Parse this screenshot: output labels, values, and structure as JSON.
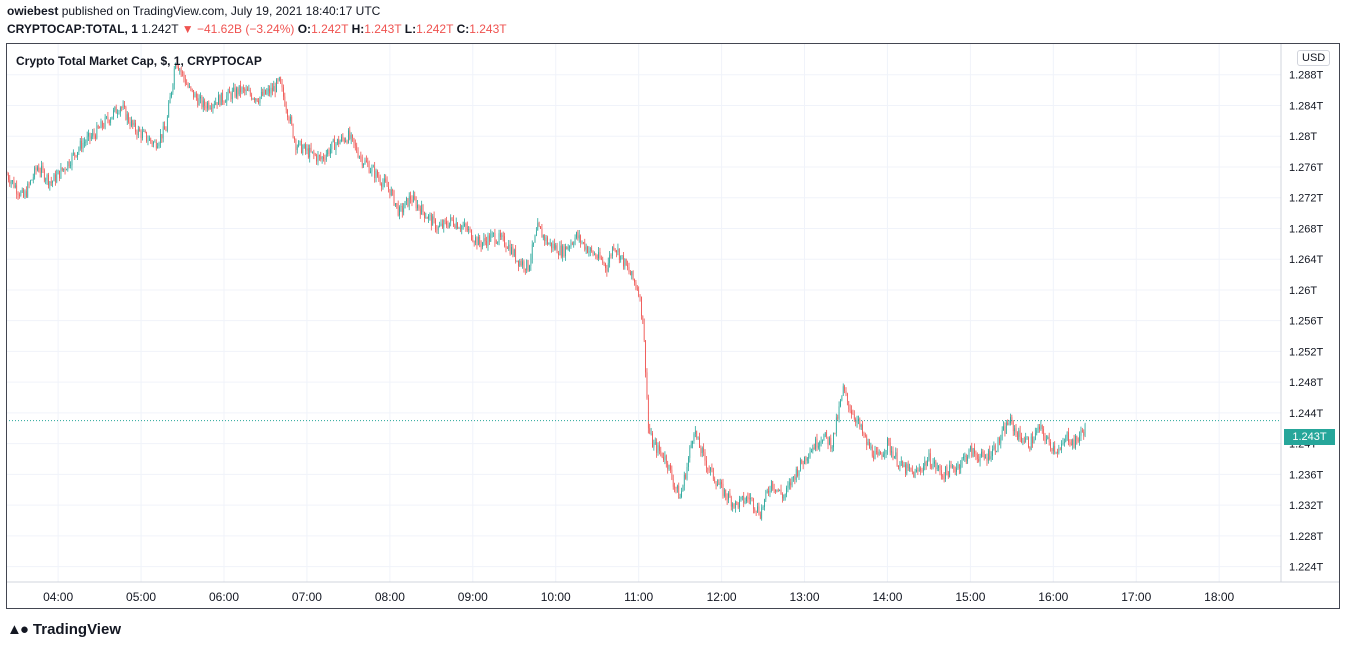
{
  "header": {
    "author": "owiebest",
    "published_text": "published on TradingView.com, July 19, 2021 18:40:17 UTC",
    "symbol": "CRYPTOCAP:TOTAL, 1",
    "last": "1.242T",
    "change": "▼ −41.62B (−3.24%)",
    "o_label": "O:",
    "o_value": "1.242T",
    "h_label": "H:",
    "h_value": "1.243T",
    "l_label": "L:",
    "l_value": "1.242T",
    "c_label": "C:",
    "c_value": "1.243T"
  },
  "legend_title": "Crypto Total Market Cap, $, 1, CRYPTOCAP",
  "currency": "USD",
  "current_price_label": "1.243T",
  "brand": "TradingView",
  "colors": {
    "up": "#26a69a",
    "down": "#ef5350",
    "grid": "#f0f3fa",
    "axis_text": "#131722"
  },
  "chart_data": {
    "type": "candlestick",
    "y_unit": "T",
    "ylim": [
      1.222,
      1.292
    ],
    "y_ticks": [
      "1.224T",
      "1.228T",
      "1.232T",
      "1.236T",
      "1.24T",
      "1.244T",
      "1.248T",
      "1.252T",
      "1.256T",
      "1.26T",
      "1.264T",
      "1.268T",
      "1.272T",
      "1.276T",
      "1.28T",
      "1.284T",
      "1.288T"
    ],
    "y_tick_values": [
      1.224,
      1.228,
      1.232,
      1.236,
      1.24,
      1.244,
      1.248,
      1.252,
      1.256,
      1.26,
      1.264,
      1.268,
      1.272,
      1.276,
      1.28,
      1.284,
      1.288
    ],
    "x_ticks": [
      "04:00",
      "05:00",
      "06:00",
      "07:00",
      "08:00",
      "09:00",
      "10:00",
      "11:00",
      "12:00",
      "13:00",
      "14:00",
      "15:00",
      "16:00",
      "17:00",
      "18:00"
    ],
    "x_range_minutes": [
      203,
      1124
    ],
    "current_price": 1.243,
    "path_points": [
      [
        203,
        1.275
      ],
      [
        215,
        1.272
      ],
      [
        225,
        1.276
      ],
      [
        235,
        1.274
      ],
      [
        245,
        1.276
      ],
      [
        257,
        1.279
      ],
      [
        265,
        1.28
      ],
      [
        275,
        1.282
      ],
      [
        285,
        1.284
      ],
      [
        295,
        1.281
      ],
      [
        310,
        1.279
      ],
      [
        318,
        1.281
      ],
      [
        325,
        1.29
      ],
      [
        335,
        1.286
      ],
      [
        345,
        1.284
      ],
      [
        360,
        1.285
      ],
      [
        372,
        1.286
      ],
      [
        385,
        1.285
      ],
      [
        395,
        1.286
      ],
      [
        400,
        1.287
      ],
      [
        405,
        1.284
      ],
      [
        412,
        1.279
      ],
      [
        420,
        1.278
      ],
      [
        430,
        1.277
      ],
      [
        440,
        1.279
      ],
      [
        450,
        1.28
      ],
      [
        460,
        1.277
      ],
      [
        470,
        1.275
      ],
      [
        480,
        1.273
      ],
      [
        487,
        1.27
      ],
      [
        495,
        1.272
      ],
      [
        505,
        1.27
      ],
      [
        515,
        1.268
      ],
      [
        525,
        1.269
      ],
      [
        535,
        1.268
      ],
      [
        545,
        1.266
      ],
      [
        555,
        1.267
      ],
      [
        565,
        1.266
      ],
      [
        572,
        1.264
      ],
      [
        580,
        1.263
      ],
      [
        587,
        1.268
      ],
      [
        595,
        1.266
      ],
      [
        605,
        1.265
      ],
      [
        615,
        1.267
      ],
      [
        625,
        1.265
      ],
      [
        632,
        1.264
      ],
      [
        637,
        1.263
      ],
      [
        642,
        1.266
      ],
      [
        648,
        1.264
      ],
      [
        654,
        1.262
      ],
      [
        660,
        1.26
      ],
      [
        663,
        1.256
      ],
      [
        665,
        1.25
      ],
      [
        667,
        1.242
      ],
      [
        670,
        1.24
      ],
      [
        675,
        1.239
      ],
      [
        680,
        1.238
      ],
      [
        685,
        1.235
      ],
      [
        690,
        1.233
      ],
      [
        695,
        1.237
      ],
      [
        700,
        1.242
      ],
      [
        703,
        1.24
      ],
      [
        710,
        1.237
      ],
      [
        720,
        1.234
      ],
      [
        730,
        1.232
      ],
      [
        740,
        1.233
      ],
      [
        748,
        1.231
      ],
      [
        756,
        1.235
      ],
      [
        765,
        1.233
      ],
      [
        773,
        1.236
      ],
      [
        783,
        1.239
      ],
      [
        793,
        1.241
      ],
      [
        800,
        1.24
      ],
      [
        808,
        1.247
      ],
      [
        812,
        1.245
      ],
      [
        818,
        1.243
      ],
      [
        825,
        1.24
      ],
      [
        833,
        1.238
      ],
      [
        840,
        1.24
      ],
      [
        850,
        1.237
      ],
      [
        860,
        1.236
      ],
      [
        870,
        1.238
      ],
      [
        880,
        1.236
      ],
      [
        890,
        1.237
      ],
      [
        900,
        1.239
      ],
      [
        910,
        1.238
      ],
      [
        920,
        1.24
      ],
      [
        928,
        1.243
      ],
      [
        935,
        1.241
      ],
      [
        943,
        1.24
      ],
      [
        950,
        1.242
      ],
      [
        957,
        1.24
      ],
      [
        965,
        1.239
      ],
      [
        970,
        1.241
      ],
      [
        975,
        1.24
      ],
      [
        983,
        1.242
      ]
    ]
  }
}
